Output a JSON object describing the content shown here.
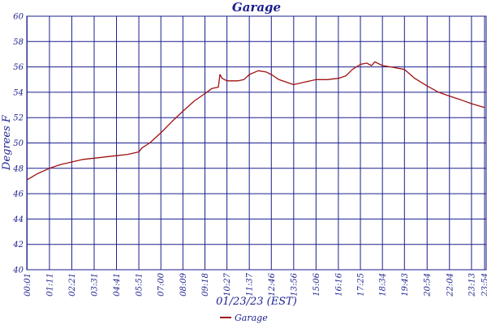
{
  "chart_data": {
    "type": "line",
    "title": "Garage",
    "xlabel": "01/23/23 (EST)",
    "ylabel": "Degrees F",
    "ylim": [
      40,
      60
    ],
    "yticks": [
      40,
      42,
      44,
      46,
      48,
      50,
      52,
      54,
      56,
      58,
      60
    ],
    "xlim_minutes": [
      0,
      1439
    ],
    "xtick_labels": [
      "00:01",
      "01:11",
      "02:21",
      "03:31",
      "04:41",
      "05:51",
      "07:00",
      "08:09",
      "09:18",
      "10:27",
      "11:37",
      "12:46",
      "13:56",
      "15:06",
      "16:16",
      "17:25",
      "18:34",
      "19:43",
      "20:54",
      "22:04",
      "23:13",
      "23:54"
    ],
    "grid": true,
    "legend_position": "bottom-center",
    "colors": {
      "series": "#a01010",
      "grid": "#1a1f8c",
      "text": "#1a1f8c"
    },
    "series": [
      {
        "name": "Garage",
        "x": [
          "00:01",
          "00:35",
          "01:11",
          "01:46",
          "02:21",
          "02:56",
          "03:31",
          "04:06",
          "04:41",
          "05:16",
          "05:51",
          "06:00",
          "06:25",
          "07:00",
          "07:35",
          "08:09",
          "08:44",
          "09:18",
          "09:40",
          "10:00",
          "10:05",
          "10:12",
          "10:27",
          "11:02",
          "11:20",
          "11:37",
          "12:05",
          "12:30",
          "12:46",
          "13:10",
          "13:56",
          "14:30",
          "15:06",
          "15:40",
          "16:16",
          "16:40",
          "17:00",
          "17:25",
          "17:45",
          "18:00",
          "18:10",
          "18:34",
          "19:00",
          "19:43",
          "20:15",
          "20:54",
          "21:30",
          "22:04",
          "22:40",
          "23:13",
          "23:54"
        ],
        "y": [
          47.1,
          47.6,
          48.0,
          48.3,
          48.5,
          48.7,
          48.8,
          48.9,
          49.0,
          49.1,
          49.3,
          49.6,
          50.0,
          50.8,
          51.7,
          52.5,
          53.3,
          53.9,
          54.3,
          54.4,
          55.4,
          55.1,
          54.9,
          54.9,
          55.0,
          55.4,
          55.7,
          55.6,
          55.4,
          55.0,
          54.6,
          54.8,
          55.0,
          55.0,
          55.1,
          55.3,
          55.8,
          56.2,
          56.3,
          56.1,
          56.4,
          56.1,
          56.0,
          55.8,
          55.1,
          54.5,
          54.0,
          53.7,
          53.4,
          53.1,
          52.8
        ]
      }
    ]
  }
}
